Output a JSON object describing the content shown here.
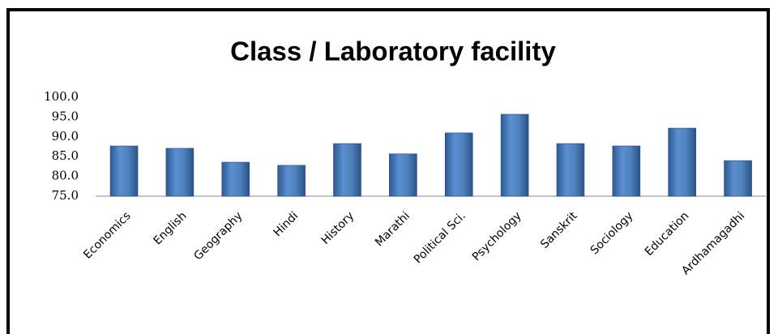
{
  "chart_data": {
    "type": "bar",
    "title": "Class / Laboratory facility",
    "categories": [
      "Economics",
      "English",
      "Geography",
      "Hindi",
      "History",
      "Marathi",
      "Political Sci.",
      "Psychology",
      "Sanskrit",
      "Sociology",
      "Education",
      "Ardhamagadhi"
    ],
    "values": [
      87.7,
      87.1,
      83.6,
      82.8,
      88.3,
      85.7,
      91.0,
      95.7,
      88.3,
      87.7,
      92.2,
      84.0
    ],
    "color": "#4f81bd",
    "ylim": [
      75,
      100
    ],
    "yticks": [
      {
        "value": 75,
        "label": "75.0"
      },
      {
        "value": 80,
        "label": "80.0"
      },
      {
        "value": 85,
        "label": "85.0"
      },
      {
        "value": 90,
        "label": "90.0"
      },
      {
        "value": 95,
        "label": "95.0"
      },
      {
        "value": 100,
        "label": "100.0"
      }
    ],
    "grid": false
  }
}
